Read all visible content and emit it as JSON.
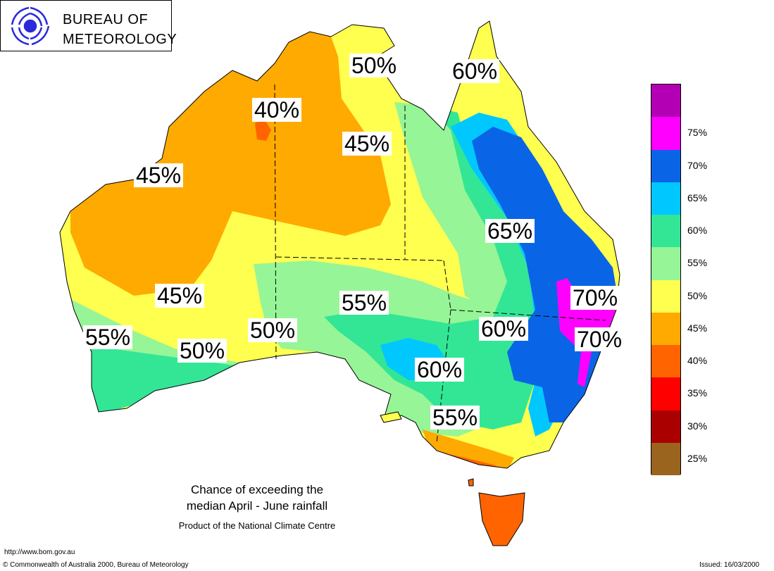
{
  "logo": {
    "line1": "BUREAU OF",
    "line2": "METEOROLOGY"
  },
  "caption": {
    "line1": "Chance of exceeding the",
    "line2": "median April - June rainfall",
    "line3": "Product of the National Climate Centre"
  },
  "footer": {
    "url": "http://www.bom.gov.au",
    "copyright": "© Commonwealth of Australia 2000, Bureau of Meteorology",
    "issued": "Issued: 16/03/2000"
  },
  "map_labels": [
    {
      "id": "label-50-top",
      "text": "50%"
    },
    {
      "id": "label-60-top",
      "text": "60%"
    },
    {
      "id": "label-40",
      "text": "40%"
    },
    {
      "id": "label-45-nt",
      "text": "45%"
    },
    {
      "id": "label-45-wa",
      "text": "45%"
    },
    {
      "id": "label-65",
      "text": "65%"
    },
    {
      "id": "label-70-a",
      "text": "70%"
    },
    {
      "id": "label-45-south",
      "text": "45%"
    },
    {
      "id": "label-55-center",
      "text": "55%"
    },
    {
      "id": "label-60-center",
      "text": "60%"
    },
    {
      "id": "label-70-b",
      "text": "70%"
    },
    {
      "id": "label-55-west",
      "text": "55%"
    },
    {
      "id": "label-50-sa",
      "text": "50%"
    },
    {
      "id": "label-50-wa",
      "text": "50%"
    },
    {
      "id": "label-60-south",
      "text": "60%"
    },
    {
      "id": "label-55-south",
      "text": "55%"
    }
  ],
  "legend": {
    "items": [
      {
        "label": "",
        "color": "#b400b4"
      },
      {
        "label": "75%",
        "color": "#ff00ff"
      },
      {
        "label": "70%",
        "color": "#0a64e6"
      },
      {
        "label": "65%",
        "color": "#00c8ff"
      },
      {
        "label": "60%",
        "color": "#32e696"
      },
      {
        "label": "55%",
        "color": "#96f596"
      },
      {
        "label": "50%",
        "color": "#ffff50"
      },
      {
        "label": "45%",
        "color": "#ffaa00"
      },
      {
        "label": "40%",
        "color": "#ff6400"
      },
      {
        "label": "35%",
        "color": "#ff0000"
      },
      {
        "label": "30%",
        "color": "#aa0000"
      },
      {
        "label": "25%",
        "color": "#9b641e"
      }
    ]
  }
}
